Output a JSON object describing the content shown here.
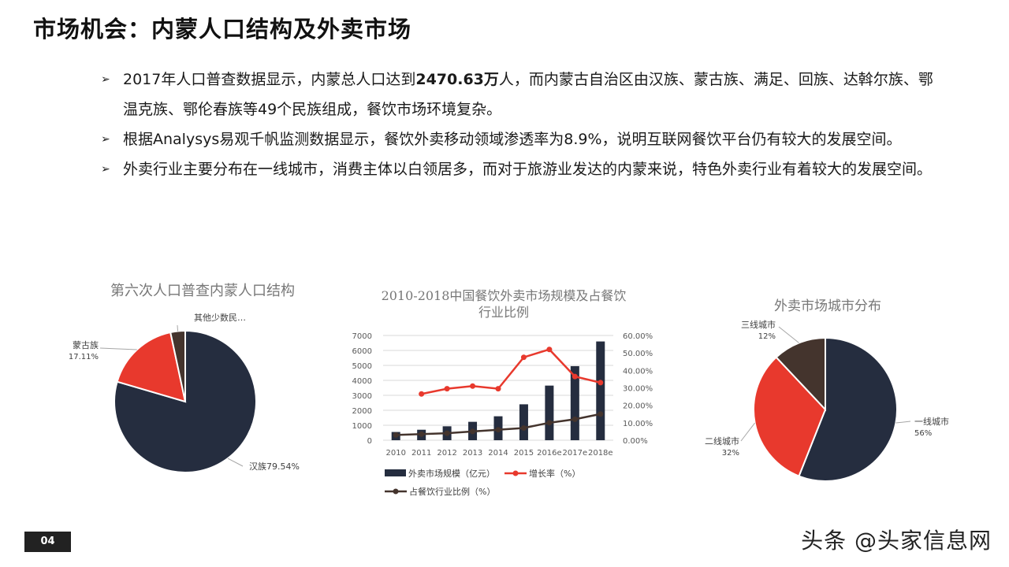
{
  "page": {
    "title": "市场机会：内蒙人口结构及外卖市场",
    "page_number": "04",
    "watermark": "头条 @头家信息网"
  },
  "bullets": [
    {
      "icon": "arrow-bullet-icon",
      "pre": "2017年人口普查数据显示，内蒙总人口达到",
      "bold": "2470.63万",
      "post": "人，而内蒙古自治区由汉族、蒙古族、满足、回族、达斡尔族、鄂温克族、鄂伦春族等49个民族组成，餐饮市场环境复杂。"
    },
    {
      "icon": "arrow-bullet-icon",
      "pre": "根据Analysys易观千帆监测数据显示，餐饮外卖移动领域渗透率为8.9%，说明互联网餐饮平台仍有较大的发展空间。",
      "bold": "",
      "post": ""
    },
    {
      "icon": "arrow-bullet-icon",
      "pre": "外卖行业主要分布在一线城市，消费主体以白领居多，而对于旅游业发达的内蒙来说，特色外卖行业有着较大的发展空间。",
      "bold": "",
      "post": ""
    }
  ],
  "colors": {
    "navy": "#252d3f",
    "red": "#e8392d",
    "brown": "#44342d",
    "grid": "#d9d9d9",
    "axis_text": "#595959"
  },
  "chart_data": [
    {
      "type": "pie",
      "title": "第六次人口普查内蒙人口结构",
      "labels": [
        "汉族",
        "蒙古族",
        "其他少数民…"
      ],
      "values": [
        79.54,
        17.11,
        3.35
      ],
      "value_labels": [
        "79.54%",
        "17.11%",
        ""
      ],
      "colors": [
        "#252d3f",
        "#e8392d",
        "#44342d"
      ]
    },
    {
      "type": "bar",
      "title": "2010-2018中国餐饮外卖市场规模及占餐饮行业比例",
      "categories": [
        "2010",
        "2011",
        "2012",
        "2013",
        "2014",
        "2015",
        "2016e",
        "2017e",
        "2018e"
      ],
      "series": [
        {
          "name": "外卖市场规模（亿元）",
          "type": "bar",
          "axis": "left",
          "color": "#252d3f",
          "values": [
            550,
            700,
            930,
            1230,
            1600,
            2400,
            3650,
            4950,
            6600
          ]
        },
        {
          "name": "增长率（%）",
          "type": "line",
          "axis": "right",
          "color": "#e8392d",
          "values": [
            null,
            26.5,
            29.5,
            31.0,
            29.5,
            47.5,
            52.0,
            36.5,
            33.0
          ]
        },
        {
          "name": "占餐饮行业比例（%）",
          "type": "line",
          "axis": "right",
          "color": "#44342d",
          "values": [
            3.0,
            3.5,
            4.0,
            5.0,
            6.0,
            7.0,
            10.0,
            12.0,
            15.0
          ]
        }
      ],
      "y_left": {
        "ticks": [
          "0",
          "1000",
          "2000",
          "3000",
          "4000",
          "5000",
          "6000",
          "7000"
        ],
        "range": [
          0,
          7000
        ]
      },
      "y_right": {
        "ticks": [
          "0.00%",
          "10.00%",
          "20.00%",
          "30.00%",
          "40.00%",
          "50.00%",
          "60.00%"
        ],
        "range": [
          0,
          60
        ]
      },
      "grid": true,
      "legend_position": "bottom"
    },
    {
      "type": "pie",
      "title": "外卖市场城市分布",
      "labels": [
        "一线城市",
        "二线城市",
        "三线城市"
      ],
      "values": [
        56,
        32,
        12
      ],
      "value_labels": [
        "56%",
        "32%",
        "12%"
      ],
      "colors": [
        "#252d3f",
        "#e8392d",
        "#44342d"
      ]
    }
  ]
}
